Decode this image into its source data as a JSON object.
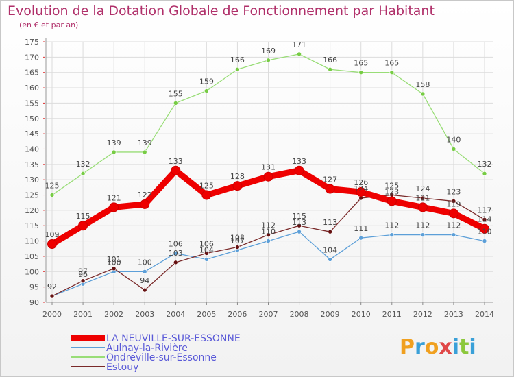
{
  "title": "Evolution de la Dotation Globale de Fonctionnement par Habitant",
  "subtitle": "(en € et par an)",
  "logo": {
    "text": "Proxiti",
    "letters": [
      "P",
      "r",
      "o",
      "x",
      "i",
      "t",
      "i"
    ],
    "colors": [
      "#f0a020",
      "#3aa0d8",
      "#f0a020",
      "#e04848",
      "#3aa0d8",
      "#8cc83c",
      "#3aa0d8"
    ]
  },
  "chart_data": {
    "type": "line",
    "x": [
      2000,
      2001,
      2002,
      2003,
      2004,
      2005,
      2006,
      2007,
      2008,
      2009,
      2010,
      2011,
      2012,
      2013,
      2014
    ],
    "ylim": [
      90,
      175
    ],
    "yticks": [
      90,
      95,
      100,
      105,
      110,
      115,
      120,
      125,
      130,
      135,
      140,
      145,
      150,
      155,
      160,
      165,
      170,
      175
    ],
    "grid": true,
    "legend_position": "bottom-left",
    "series": [
      {
        "name": "LA NEUVILLE-SUR-ESSONNE",
        "color": "#ee0000",
        "width": 9,
        "point_color": "#ee0000",
        "values": [
          109,
          115,
          121,
          122,
          133,
          125,
          128,
          131,
          133,
          127,
          126,
          123,
          121,
          119,
          114
        ],
        "labels": [
          "109",
          "115",
          "121",
          "122",
          "133",
          "125",
          "128",
          "131",
          "133",
          "127",
          "126",
          "123",
          "121",
          "119",
          "114"
        ]
      },
      {
        "name": "Aulnay-la-Rivière",
        "color": "#5c9fd8",
        "width": 1.3,
        "point_color": "#5c9fd8",
        "values": [
          92,
          96,
          100,
          100,
          106,
          104,
          107,
          110,
          113,
          104,
          111,
          112,
          112,
          112,
          110
        ],
        "labels": [
          "92",
          "96",
          "100",
          "100",
          "106",
          "104",
          "107",
          "110",
          "113",
          "104",
          "111",
          "112",
          "112",
          "112",
          "110"
        ]
      },
      {
        "name": "Ondreville-sur-Essonne",
        "color": "#99dd77",
        "width": 1.3,
        "point_color": "#77cc44",
        "values": [
          125,
          132,
          139,
          139,
          155,
          159,
          166,
          169,
          171,
          166,
          165,
          165,
          158,
          140,
          132
        ],
        "labels": [
          "125",
          "132",
          "139",
          "139",
          "155",
          "159",
          "166",
          "169",
          "171",
          "166",
          "165",
          "165",
          "158",
          "140",
          "132"
        ]
      },
      {
        "name": "Estouy",
        "color": "#7a2a2a",
        "width": 1.3,
        "point_color": "#661111",
        "values": [
          92,
          97,
          101,
          94,
          103,
          106,
          108,
          112,
          115,
          113,
          124,
          125,
          124,
          123,
          117
        ],
        "labels": [
          "92",
          "97",
          "101",
          "94",
          "103",
          "106",
          "108",
          "112",
          "115",
          "113",
          "124",
          "125",
          "124",
          "123",
          "117"
        ]
      }
    ]
  }
}
